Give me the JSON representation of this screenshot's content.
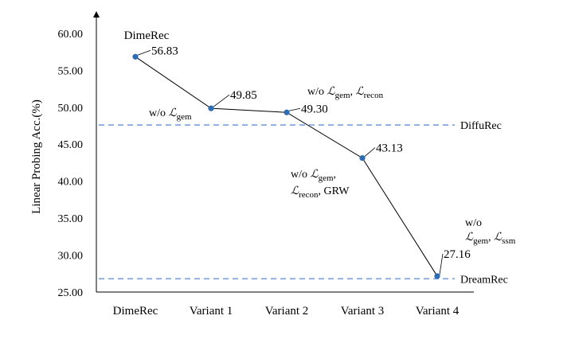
{
  "chart_data": {
    "type": "line",
    "title": "",
    "xlabel": "",
    "ylabel": "Linear Probing Acc.(%)",
    "categories": [
      "DimeRec",
      "Variant 1",
      "Variant 2",
      "Variant 3",
      "Variant 4"
    ],
    "series": [
      {
        "values": [
          56.83,
          49.85,
          49.3,
          43.13,
          27.16
        ]
      }
    ],
    "data_labels": [
      "56.83",
      "49.85",
      "49.30",
      "43.13",
      "27.16"
    ],
    "ylim": [
      25,
      62
    ],
    "yticks": [
      25,
      30,
      35,
      40,
      45,
      50,
      55,
      60
    ],
    "ytick_labels": [
      "25.00",
      "30.00",
      "35.00",
      "40.00",
      "45.00",
      "50.00",
      "55.00",
      "60.00"
    ],
    "reference_lines": [
      {
        "name": "DiffuRec",
        "value": 47.6
      },
      {
        "name": "DreamRec",
        "value": 26.8
      }
    ],
    "annotations": {
      "p0": {
        "text": "DimeRec"
      },
      "p1": {
        "prefix": "w/o ",
        "script": "ℒ",
        "sub": "gem"
      },
      "p2": {
        "prefix": "w/o  ",
        "s1": "ℒ",
        "sub1": "gem",
        "comma": ", ",
        "s2": "ℒ",
        "sub2": "recon"
      },
      "p3": {
        "line1_prefix": "w/o ",
        "s1": "ℒ",
        "sub1": "gem",
        "line1_suffix": ",",
        "s2": "ℒ",
        "sub2": "recon",
        "line2_suffix": ", GRW"
      },
      "p4": {
        "line1": "w/o",
        "s1": "ℒ",
        "sub1": "gem",
        "comma": ", ",
        "s2": "ℒ",
        "sub2": "ssm"
      }
    },
    "colors": {
      "line": "#000000",
      "marker": "#2E6DB4",
      "reference": "#7F9FD6"
    },
    "grid": false
  }
}
